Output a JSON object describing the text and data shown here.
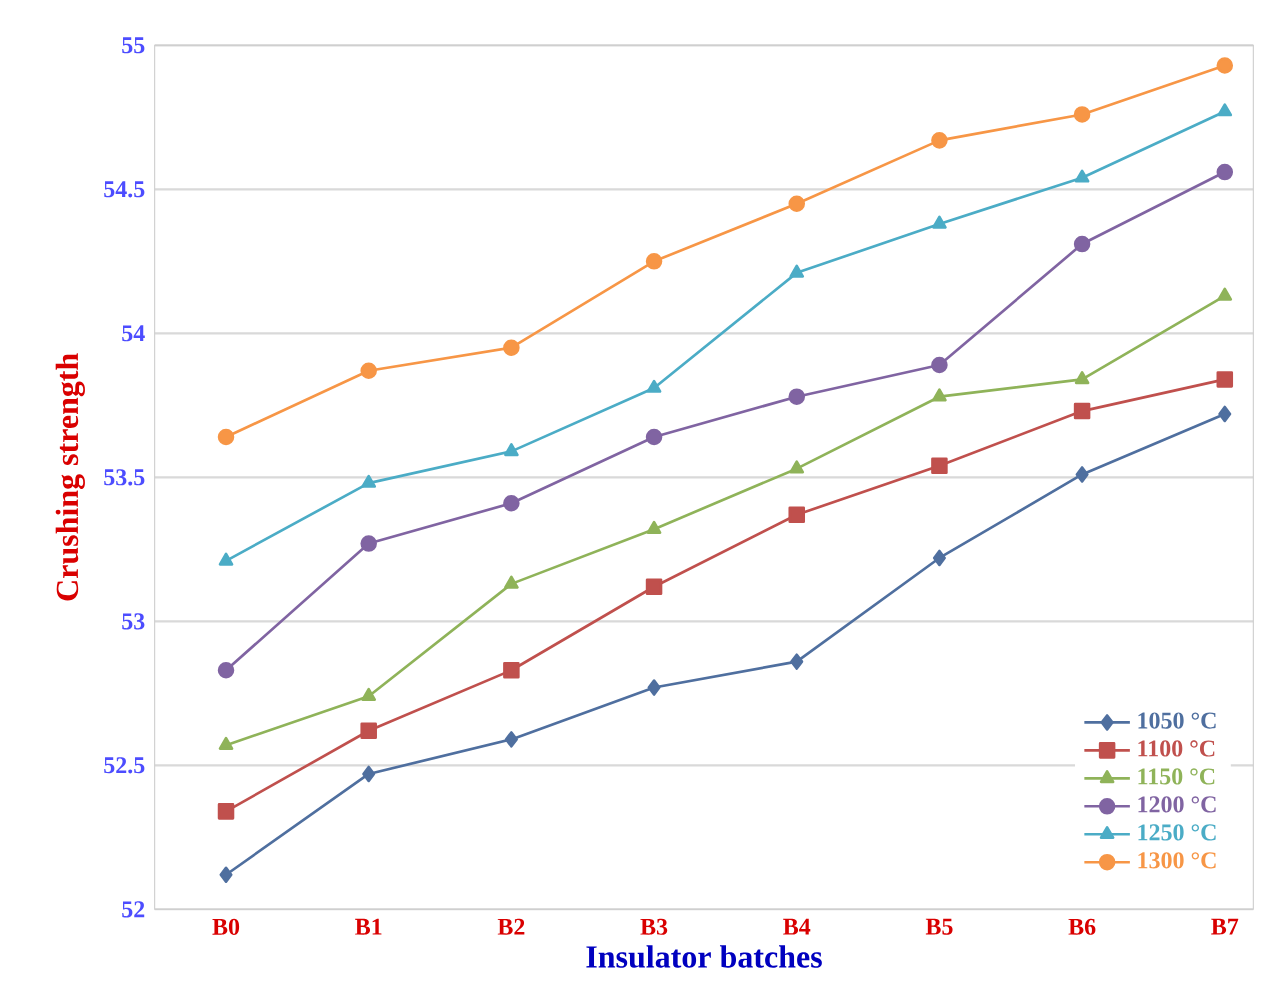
{
  "chart_data": {
    "type": "line",
    "xlabel": "Insulator batches",
    "ylabel": "Crushing strength",
    "categories": [
      "B0",
      "B1",
      "B2",
      "B3",
      "B4",
      "B5",
      "B6",
      "B7"
    ],
    "series": [
      {
        "name": "1050 °C",
        "color": "#4f6f9f",
        "marker": "diamond",
        "values": [
          52.12,
          52.47,
          52.59,
          52.77,
          52.86,
          53.22,
          53.51,
          53.72
        ]
      },
      {
        "name": "1100 °C",
        "color": "#c0504d",
        "marker": "square",
        "values": [
          52.34,
          52.62,
          52.83,
          53.12,
          53.37,
          53.54,
          53.73,
          53.84
        ]
      },
      {
        "name": "1150 °C",
        "color": "#8fb359",
        "marker": "triangle",
        "values": [
          52.57,
          52.74,
          53.13,
          53.32,
          53.53,
          53.78,
          53.84,
          54.13
        ]
      },
      {
        "name": "1200 °C",
        "color": "#8064a2",
        "marker": "circle",
        "values": [
          52.83,
          53.27,
          53.41,
          53.64,
          53.78,
          53.89,
          54.31,
          54.56
        ]
      },
      {
        "name": "1250 °C",
        "color": "#4bacc6",
        "marker": "triangle",
        "values": [
          53.21,
          53.48,
          53.59,
          53.81,
          54.21,
          54.38,
          54.54,
          54.77
        ]
      },
      {
        "name": "1300 °C",
        "color": "#f79646",
        "marker": "circle",
        "values": [
          53.64,
          53.87,
          53.95,
          54.25,
          54.45,
          54.67,
          54.76,
          54.93
        ]
      }
    ],
    "ylim": [
      52,
      55
    ],
    "yticks": [
      52,
      52.5,
      53,
      53.5,
      54,
      54.5,
      55
    ],
    "grid": "y",
    "legend": "bottom right"
  }
}
